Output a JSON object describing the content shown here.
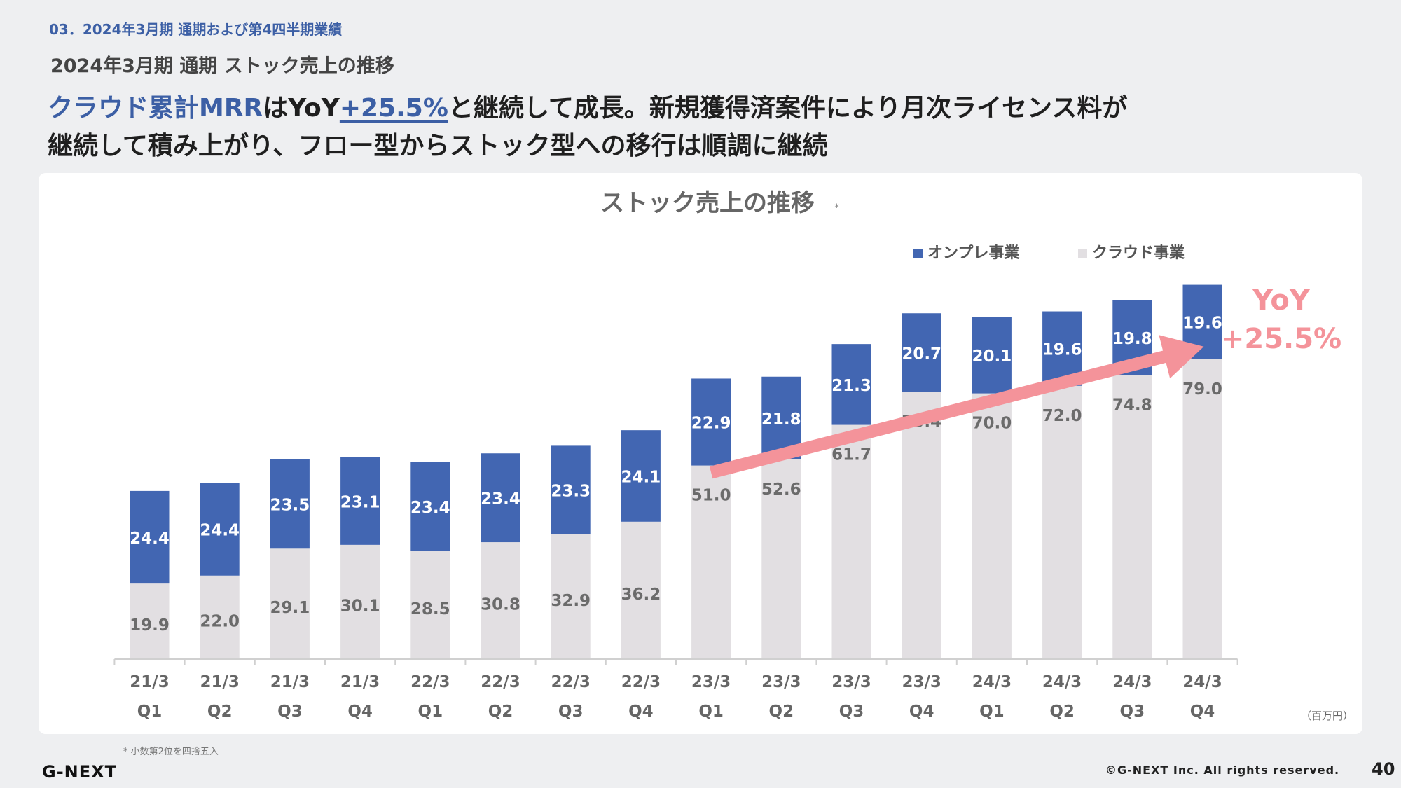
{
  "header": {
    "section": "03．2024年3月期 通期および第4四半期業績",
    "subtitle": "2024年3月期 通期 ストック売上の推移",
    "headline_part1": "クラウド累計MRR",
    "headline_part2": "はYoY",
    "headline_part3": "+25.5%",
    "headline_part4": "と継続して成長。新規獲得済案件により月次ライセンス料が",
    "headline_line2": "継続して積み上がり、フロー型からストック型への移行は順調に継続"
  },
  "footer": {
    "footnote": "* 小数第2位を四捨五入",
    "logo": "G-NEXT",
    "copyright": "©G-NEXT Inc. All rights reserved.",
    "page_number": "40"
  },
  "colors": {
    "onpre": "#4266b2",
    "cloud": "#e2dfe2",
    "arrow": "#f4939a",
    "accent": "#3c5fa5"
  },
  "chart_data": {
    "type": "bar",
    "stacked": true,
    "title": "ストック売上の推移",
    "title_marker": "*",
    "unit": "（百万円）",
    "legend_placement": "top-right",
    "categories": [
      [
        "21/3",
        "Q1"
      ],
      [
        "21/3",
        "Q2"
      ],
      [
        "21/3",
        "Q3"
      ],
      [
        "21/3",
        "Q4"
      ],
      [
        "22/3",
        "Q1"
      ],
      [
        "22/3",
        "Q2"
      ],
      [
        "22/3",
        "Q3"
      ],
      [
        "22/3",
        "Q4"
      ],
      [
        "23/3",
        "Q1"
      ],
      [
        "23/3",
        "Q2"
      ],
      [
        "23/3",
        "Q3"
      ],
      [
        "23/3",
        "Q4"
      ],
      [
        "24/3",
        "Q1"
      ],
      [
        "24/3",
        "Q2"
      ],
      [
        "24/3",
        "Q3"
      ],
      [
        "24/3",
        "Q4"
      ]
    ],
    "series": [
      {
        "name": "クラウド事業",
        "color": "#e2dfe2",
        "values": [
          19.9,
          22.0,
          29.1,
          30.1,
          28.5,
          30.8,
          32.9,
          36.2,
          51.0,
          52.6,
          61.7,
          70.4,
          70.0,
          72.0,
          74.8,
          79.0
        ]
      },
      {
        "name": "オンプレ事業",
        "color": "#4266b2",
        "values": [
          24.4,
          24.4,
          23.5,
          23.1,
          23.4,
          23.4,
          23.3,
          24.1,
          22.9,
          21.8,
          21.3,
          20.7,
          20.1,
          19.6,
          19.8,
          19.6
        ]
      }
    ],
    "legend_order": [
      "オンプレ事業",
      "クラウド事業"
    ],
    "ylim": [
      0,
      120
    ],
    "grid": false,
    "annotation": {
      "line1": "YoY",
      "line2": "+25.5%",
      "from_index": 8,
      "to_index": 15
    }
  }
}
